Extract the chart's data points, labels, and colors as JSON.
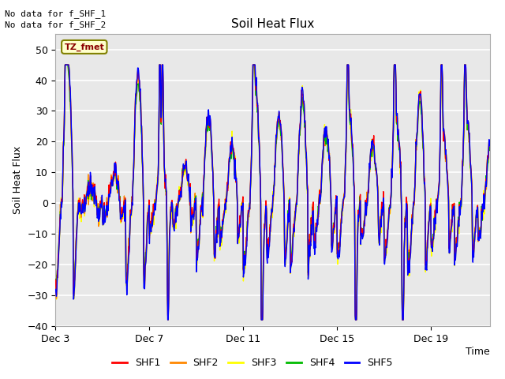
{
  "title": "Soil Heat Flux",
  "ylabel": "Soil Heat Flux",
  "xlabel": "Time",
  "ylim": [
    -40,
    55
  ],
  "yticks": [
    -40,
    -30,
    -20,
    -10,
    0,
    10,
    20,
    30,
    40,
    50
  ],
  "xtick_labels": [
    "Dec 3",
    "Dec 7",
    "Dec 11",
    "Dec 15",
    "Dec 19"
  ],
  "xtick_positions": [
    0,
    4,
    8,
    12,
    16
  ],
  "xlim": [
    0,
    18.5
  ],
  "colors": {
    "SHF1": "#ff0000",
    "SHF2": "#ff8800",
    "SHF3": "#ffff00",
    "SHF4": "#00bb00",
    "SHF5": "#0000ff"
  },
  "note1": "No data for f_SHF_1",
  "note2": "No data for f_SHF_2",
  "tz_label": "TZ_fmet",
  "plot_bg": "#e8e8e8",
  "linewidth": 1.0,
  "n_points": 1000,
  "seed": 7
}
